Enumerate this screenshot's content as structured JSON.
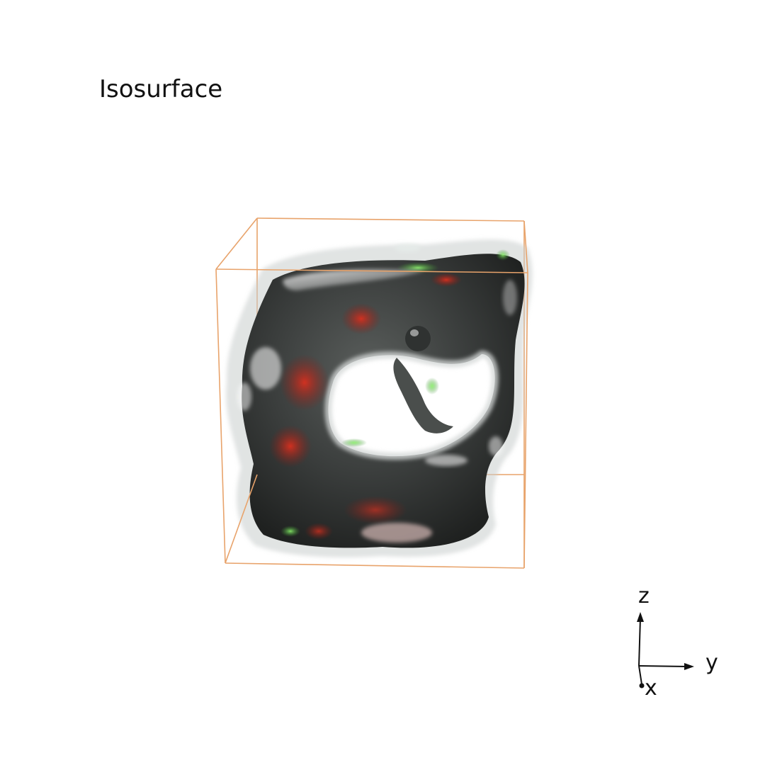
{
  "title": "Isosurface",
  "bounding_box_color": "#E8A36B",
  "surface_colors": {
    "base": "#3A3D3C",
    "highlight": "#E6ECEA",
    "accent_red": "#C8261C",
    "accent_green": "#6BD65A",
    "translucent": "#BFC3C2"
  },
  "orientation_triad": {
    "axes": [
      {
        "label": "z"
      },
      {
        "label": "y"
      },
      {
        "label": "x"
      }
    ]
  }
}
